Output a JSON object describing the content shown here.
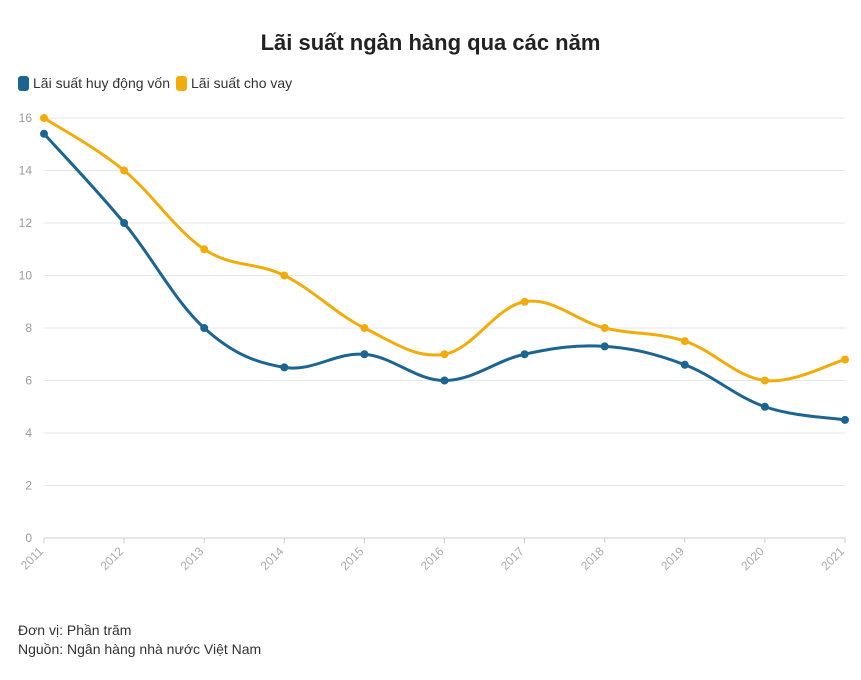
{
  "chart_data": {
    "type": "line",
    "title": "Lãi suất ngân hàng qua các năm",
    "x": [
      "2011",
      "2012",
      "2013",
      "2014",
      "2015",
      "2016",
      "2017",
      "2018",
      "2019",
      "2020",
      "2021"
    ],
    "series": [
      {
        "name": "Lãi suất huy động vốn",
        "color": "#1d6591",
        "values": [
          15.4,
          12,
          8,
          6.5,
          7,
          6,
          7,
          7.3,
          6.6,
          5,
          4.5
        ]
      },
      {
        "name": "Lãi suất cho vay",
        "color": "#f0ac0d",
        "values": [
          16,
          14,
          11,
          10,
          8,
          7,
          9,
          8,
          7.5,
          6,
          6.8
        ]
      }
    ],
    "yticks": [
      0,
      2,
      4,
      6,
      8,
      10,
      12,
      14,
      16
    ],
    "ylim": [
      0,
      16
    ],
    "grid": true,
    "legend": "top-left"
  },
  "footer": {
    "unit": "Đơn vị: Phần trăm",
    "source": "Nguồn: Ngân hàng nhà nước Việt Nam"
  }
}
